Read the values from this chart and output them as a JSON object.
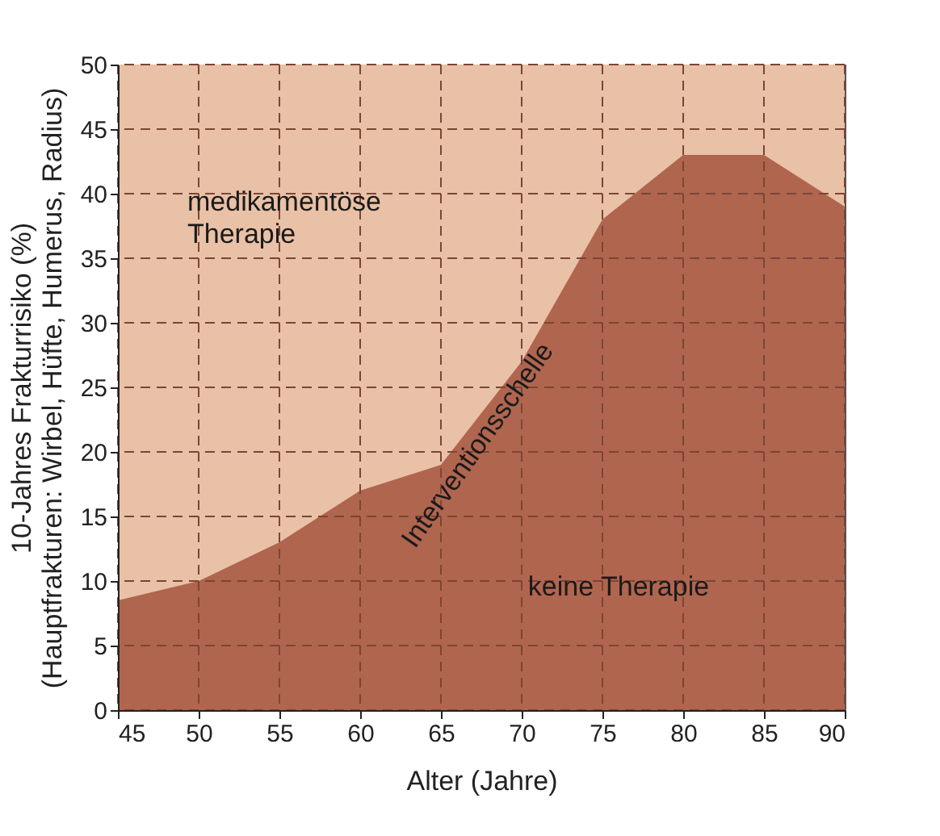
{
  "chart_data": {
    "type": "area",
    "xlabel": "Alter (Jahre)",
    "ylabel": "10-Jahres Frakturrisiko (%)\n(Hauptfrakturen: Wirbel, Hüfte, Humerus, Radius)",
    "x": [
      45,
      50,
      55,
      60,
      65,
      70,
      75,
      80,
      85,
      90
    ],
    "series": [
      {
        "color": "#b0654f",
        "values": [
          8.5,
          10,
          13,
          17,
          19,
          27,
          38,
          43,
          43,
          39
        ]
      }
    ],
    "xlim": [
      45,
      90
    ],
    "xticks": [
      45,
      50,
      55,
      60,
      65,
      70,
      75,
      80,
      85,
      90
    ],
    "ylim": [
      0,
      50
    ],
    "yticks": [
      0,
      5,
      10,
      15,
      20,
      25,
      30,
      35,
      40,
      45,
      50
    ],
    "grid": true,
    "bands": [
      {
        "axis": "y",
        "from": 0,
        "to": 50,
        "color": "#e9c1a6"
      }
    ],
    "annotations": [
      "medikamentöse\nTherapie",
      "Interventionsschelle",
      "keine Therapie"
    ]
  }
}
